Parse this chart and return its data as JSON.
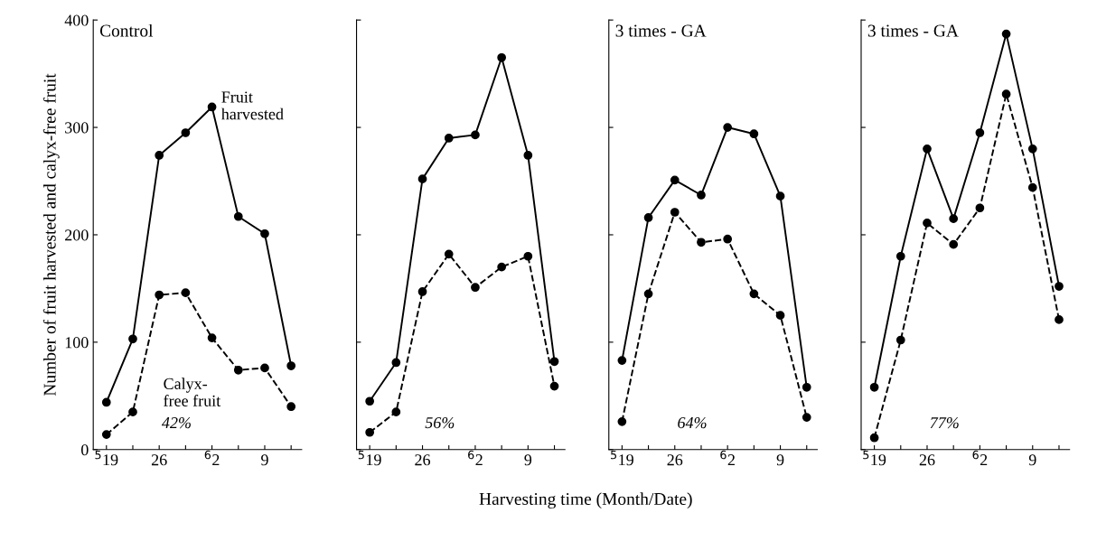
{
  "chart_data": [
    {
      "type": "line",
      "title": "Control",
      "ylabel": "Number of fruit harvested and calyx-free fruit",
      "categories": [
        "$^{5}$19",
        null,
        "26",
        null,
        "$^{6}$2",
        null,
        "9",
        null
      ],
      "ylim": [
        0,
        400
      ],
      "yticks": [
        0,
        100,
        200,
        300,
        400
      ],
      "marker": "circle",
      "grid": false,
      "legend": false,
      "series": [
        {
          "name": "Fruit\nharvested",
          "color": "#000000",
          "line_style": "solid",
          "values": [
            44,
            103,
            274,
            295,
            319,
            217,
            201,
            78
          ]
        },
        {
          "name": "Calyx-\nfree fruit",
          "color": "#000000",
          "line_style": "dashed",
          "values": [
            14,
            35,
            144,
            146,
            104,
            74,
            76,
            40
          ]
        }
      ],
      "annotations": [
        "42%"
      ]
    },
    {
      "type": "line",
      "categories": [
        "$^{5}$19",
        null,
        "26",
        null,
        "$^{6}$2",
        null,
        "9",
        null
      ],
      "xlabel": "Harvesting time (Month/Date)",
      "ylim": [
        0,
        400
      ],
      "yticks": [
        0,
        100,
        200,
        300,
        400
      ],
      "tick_labels": "x",
      "marker": "circle",
      "grid": false,
      "legend": false,
      "series": [
        {
          "color": "#000000",
          "line_style": "solid",
          "values": [
            45,
            81,
            252,
            290,
            293,
            365,
            274,
            82
          ]
        },
        {
          "color": "#000000",
          "line_style": "dashed",
          "values": [
            16,
            35,
            147,
            182,
            151,
            170,
            180,
            59
          ]
        }
      ],
      "annotations": [
        "56%"
      ]
    },
    {
      "type": "line",
      "title": "3 times - GA",
      "categories": [
        "$^{5}$19",
        null,
        "26",
        null,
        "$^{6}$2",
        null,
        "9",
        null
      ],
      "ylim": [
        0,
        400
      ],
      "yticks": [
        0,
        100,
        200,
        300,
        400
      ],
      "tick_labels": "x",
      "marker": "circle",
      "grid": false,
      "legend": false,
      "series": [
        {
          "color": "#000000",
          "line_style": "solid",
          "values": [
            83,
            216,
            251,
            237,
            300,
            294,
            236,
            58
          ]
        },
        {
          "color": "#000000",
          "line_style": "dashed",
          "values": [
            26,
            145,
            221,
            193,
            196,
            145,
            125,
            30
          ]
        }
      ],
      "annotations": [
        "64%"
      ]
    },
    {
      "type": "line",
      "title": "3 times - GA",
      "categories": [
        "$^{5}$19",
        null,
        "26",
        null,
        "$^{6}$2",
        null,
        "9",
        null
      ],
      "ylim": [
        0,
        400
      ],
      "yticks": [
        0,
        100,
        200,
        300,
        400
      ],
      "tick_labels": "x",
      "marker": "circle",
      "grid": false,
      "legend": false,
      "series": [
        {
          "color": "#000000",
          "line_style": "solid",
          "values": [
            58,
            180,
            280,
            215,
            295,
            387,
            280,
            152
          ]
        },
        {
          "color": "#000000",
          "line_style": "dashed",
          "values": [
            11,
            102,
            211,
            191,
            225,
            331,
            244,
            121
          ]
        }
      ],
      "annotations": [
        "77%"
      ]
    }
  ]
}
